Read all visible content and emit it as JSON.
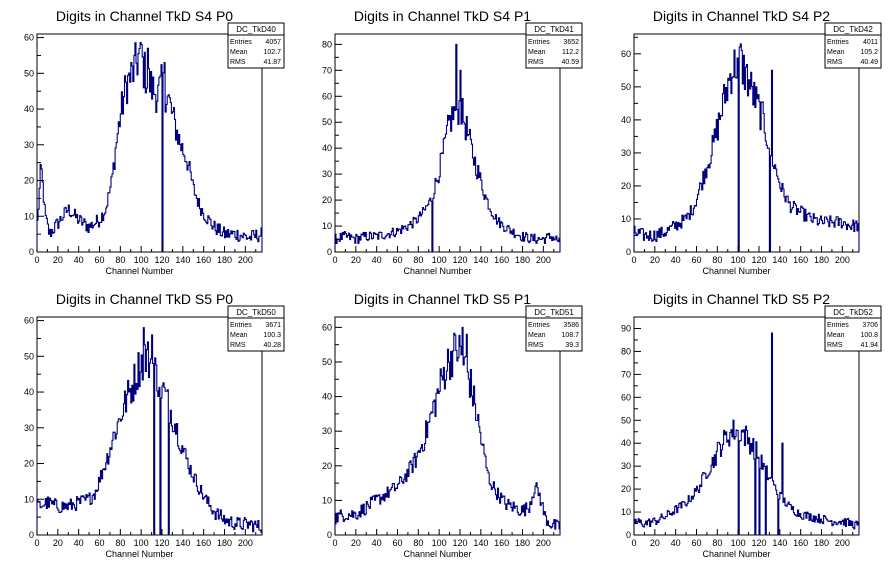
{
  "style": {
    "line_color": "#00007f",
    "axis_color": "#000000",
    "background": "#ffffff"
  },
  "chart_data": [
    {
      "type": "histogram",
      "title": "Digits in Channel TkD S4 P0",
      "xlabel": "Channel Number",
      "xlim": [
        0,
        216
      ],
      "ylim": [
        0,
        61
      ],
      "xticks": [
        0,
        20,
        40,
        60,
        80,
        100,
        120,
        140,
        160,
        180,
        200
      ],
      "yticks": [
        0,
        10,
        20,
        30,
        40,
        50,
        60
      ],
      "stats": {
        "name": "DC_TkD40",
        "entries": "4057",
        "mean": "102.7",
        "rms": "41.87"
      },
      "profile": [
        [
          0,
          6
        ],
        [
          4,
          24
        ],
        [
          8,
          10
        ],
        [
          12,
          5
        ],
        [
          20,
          8
        ],
        [
          30,
          12
        ],
        [
          40,
          9
        ],
        [
          50,
          7
        ],
        [
          60,
          9
        ],
        [
          66,
          12
        ],
        [
          72,
          20
        ],
        [
          76,
          30
        ],
        [
          80,
          38
        ],
        [
          86,
          47
        ],
        [
          92,
          50
        ],
        [
          98,
          55
        ],
        [
          104,
          50
        ],
        [
          110,
          46
        ],
        [
          116,
          44
        ],
        [
          120,
          47
        ],
        [
          126,
          43
        ],
        [
          132,
          36
        ],
        [
          138,
          30
        ],
        [
          144,
          26
        ],
        [
          150,
          18
        ],
        [
          156,
          13
        ],
        [
          162,
          10
        ],
        [
          170,
          7
        ],
        [
          180,
          5
        ],
        [
          192,
          5
        ],
        [
          204,
          4
        ],
        [
          216,
          5
        ]
      ],
      "spikes": [
        [
          120,
          0
        ],
        [
          122,
          53
        ],
        [
          100,
          58
        ],
        [
          106,
          57
        ]
      ]
    },
    {
      "type": "histogram",
      "title": "Digits in Channel TkD S4 P1",
      "xlabel": "Channel Number",
      "xlim": [
        0,
        216
      ],
      "ylim": [
        0,
        84
      ],
      "xticks": [
        0,
        20,
        40,
        60,
        80,
        100,
        120,
        140,
        160,
        180,
        200
      ],
      "yticks": [
        0,
        10,
        20,
        30,
        40,
        50,
        60,
        70,
        80
      ],
      "stats": {
        "name": "DC_TkD41",
        "entries": "3652",
        "mean": "112.2",
        "rms": "40.59"
      },
      "profile": [
        [
          0,
          5
        ],
        [
          10,
          6
        ],
        [
          20,
          5
        ],
        [
          30,
          6
        ],
        [
          40,
          6
        ],
        [
          50,
          7
        ],
        [
          60,
          8
        ],
        [
          70,
          10
        ],
        [
          78,
          12
        ],
        [
          86,
          16
        ],
        [
          92,
          20
        ],
        [
          98,
          28
        ],
        [
          104,
          38
        ],
        [
          110,
          50
        ],
        [
          116,
          55
        ],
        [
          120,
          56
        ],
        [
          126,
          48
        ],
        [
          132,
          38
        ],
        [
          138,
          30
        ],
        [
          144,
          22
        ],
        [
          150,
          16
        ],
        [
          156,
          12
        ],
        [
          162,
          10
        ],
        [
          170,
          8
        ],
        [
          180,
          6
        ],
        [
          190,
          5
        ],
        [
          200,
          5
        ],
        [
          208,
          6
        ],
        [
          216,
          4
        ]
      ],
      "spikes": [
        [
          93,
          0
        ],
        [
          116,
          80
        ],
        [
          120,
          70
        ]
      ]
    },
    {
      "type": "histogram",
      "title": "Digits in Channel TkD S4 P2",
      "xlabel": "Channel Number",
      "xlim": [
        0,
        216
      ],
      "ylim": [
        0,
        66
      ],
      "xticks": [
        0,
        20,
        40,
        60,
        80,
        100,
        120,
        140,
        160,
        180,
        200
      ],
      "yticks": [
        0,
        10,
        20,
        30,
        40,
        50,
        60
      ],
      "stats": {
        "name": "DC_TkD42",
        "entries": "4011",
        "mean": "105.2",
        "rms": "40.49"
      },
      "profile": [
        [
          0,
          6
        ],
        [
          10,
          5
        ],
        [
          20,
          5
        ],
        [
          30,
          6
        ],
        [
          40,
          8
        ],
        [
          50,
          10
        ],
        [
          58,
          14
        ],
        [
          64,
          20
        ],
        [
          70,
          26
        ],
        [
          76,
          32
        ],
        [
          82,
          40
        ],
        [
          88,
          48
        ],
        [
          94,
          55
        ],
        [
          100,
          58
        ],
        [
          106,
          55
        ],
        [
          112,
          50
        ],
        [
          118,
          45
        ],
        [
          124,
          40
        ],
        [
          130,
          32
        ],
        [
          136,
          25
        ],
        [
          142,
          19
        ],
        [
          150,
          14
        ],
        [
          160,
          12
        ],
        [
          170,
          10
        ],
        [
          180,
          9
        ],
        [
          190,
          9
        ],
        [
          200,
          9
        ],
        [
          208,
          8
        ],
        [
          216,
          8
        ]
      ],
      "spikes": [
        [
          100,
          0
        ],
        [
          102,
          63
        ],
        [
          130,
          0
        ],
        [
          132,
          55
        ]
      ]
    },
    {
      "type": "histogram",
      "title": "Digits in Channel TkD S5 P0",
      "xlabel": "Channel Number",
      "xlim": [
        0,
        216
      ],
      "ylim": [
        0,
        61
      ],
      "xticks": [
        0,
        20,
        40,
        60,
        80,
        100,
        120,
        140,
        160,
        180,
        200
      ],
      "yticks": [
        0,
        10,
        20,
        30,
        40,
        50,
        60
      ],
      "stats": {
        "name": "DC_TkD50",
        "entries": "3671",
        "mean": "100.3",
        "rms": "40.28"
      },
      "profile": [
        [
          0,
          8
        ],
        [
          10,
          9
        ],
        [
          20,
          8
        ],
        [
          30,
          8
        ],
        [
          40,
          9
        ],
        [
          50,
          10
        ],
        [
          56,
          12
        ],
        [
          62,
          17
        ],
        [
          68,
          22
        ],
        [
          74,
          28
        ],
        [
          80,
          33
        ],
        [
          86,
          38
        ],
        [
          92,
          42
        ],
        [
          98,
          47
        ],
        [
          104,
          50
        ],
        [
          110,
          48
        ],
        [
          116,
          44
        ],
        [
          122,
          40
        ],
        [
          128,
          35
        ],
        [
          134,
          30
        ],
        [
          140,
          24
        ],
        [
          148,
          18
        ],
        [
          156,
          13
        ],
        [
          164,
          9
        ],
        [
          172,
          6
        ],
        [
          182,
          4
        ],
        [
          194,
          3
        ],
        [
          206,
          3
        ],
        [
          216,
          2
        ]
      ],
      "spikes": [
        [
          112,
          0
        ],
        [
          118,
          0
        ],
        [
          102,
          58
        ],
        [
          110,
          56
        ],
        [
          126,
          0
        ]
      ]
    },
    {
      "type": "histogram",
      "title": "Digits in Channel TkD S5 P1",
      "xlabel": "Channel Number",
      "xlim": [
        0,
        216
      ],
      "ylim": [
        0,
        63
      ],
      "xticks": [
        0,
        20,
        40,
        60,
        80,
        100,
        120,
        140,
        160,
        180,
        200
      ],
      "yticks": [
        0,
        10,
        20,
        30,
        40,
        50,
        60
      ],
      "stats": {
        "name": "DC_TkD51",
        "entries": "3586",
        "mean": "108.7",
        "rms": "39.3"
      },
      "profile": [
        [
          0,
          5
        ],
        [
          10,
          6
        ],
        [
          20,
          6
        ],
        [
          30,
          8
        ],
        [
          40,
          10
        ],
        [
          50,
          12
        ],
        [
          60,
          14
        ],
        [
          70,
          18
        ],
        [
          78,
          22
        ],
        [
          86,
          28
        ],
        [
          94,
          36
        ],
        [
          100,
          42
        ],
        [
          106,
          48
        ],
        [
          112,
          52
        ],
        [
          118,
          54
        ],
        [
          124,
          50
        ],
        [
          130,
          44
        ],
        [
          136,
          35
        ],
        [
          142,
          25
        ],
        [
          148,
          16
        ],
        [
          156,
          12
        ],
        [
          164,
          9
        ],
        [
          172,
          8
        ],
        [
          180,
          7
        ],
        [
          186,
          8
        ],
        [
          192,
          14
        ],
        [
          196,
          12
        ],
        [
          202,
          5
        ],
        [
          208,
          3
        ],
        [
          216,
          2
        ]
      ],
      "spikes": [
        [
          122,
          0
        ],
        [
          122,
          60
        ],
        [
          126,
          58
        ]
      ]
    },
    {
      "type": "histogram",
      "title": "Digits in Channel TkD S5 P2",
      "xlabel": "Channel Number",
      "xlim": [
        0,
        216
      ],
      "ylim": [
        0,
        95
      ],
      "xticks": [
        0,
        20,
        40,
        60,
        80,
        100,
        120,
        140,
        160,
        180,
        200
      ],
      "yticks": [
        0,
        10,
        20,
        30,
        40,
        50,
        60,
        70,
        80,
        90
      ],
      "stats": {
        "name": "DC_TkD52",
        "entries": "3706",
        "mean": "100.8",
        "rms": "41.94"
      },
      "profile": [
        [
          0,
          6
        ],
        [
          10,
          5
        ],
        [
          20,
          6
        ],
        [
          30,
          8
        ],
        [
          40,
          11
        ],
        [
          50,
          14
        ],
        [
          58,
          18
        ],
        [
          64,
          22
        ],
        [
          70,
          28
        ],
        [
          76,
          32
        ],
        [
          82,
          38
        ],
        [
          88,
          42
        ],
        [
          94,
          45
        ],
        [
          100,
          46
        ],
        [
          106,
          44
        ],
        [
          112,
          40
        ],
        [
          118,
          36
        ],
        [
          124,
          30
        ],
        [
          130,
          25
        ],
        [
          136,
          20
        ],
        [
          142,
          16
        ],
        [
          150,
          12
        ],
        [
          160,
          9
        ],
        [
          170,
          8
        ],
        [
          180,
          7
        ],
        [
          190,
          6
        ],
        [
          200,
          6
        ],
        [
          208,
          5
        ],
        [
          216,
          4
        ]
      ],
      "spikes": [
        [
          100,
          0
        ],
        [
          116,
          0
        ],
        [
          120,
          0
        ],
        [
          126,
          0
        ],
        [
          132,
          88
        ],
        [
          138,
          0
        ],
        [
          142,
          40
        ]
      ]
    }
  ]
}
